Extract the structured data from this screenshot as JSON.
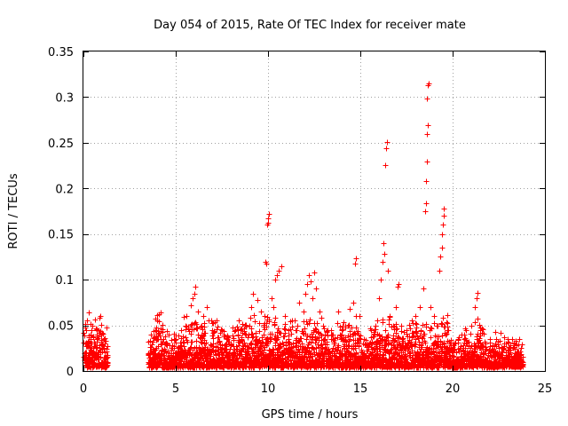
{
  "chart_data": {
    "type": "scatter",
    "title": "Day 054 of 2015, Rate Of TEC Index for receiver mate",
    "xlabel": "GPS time / hours",
    "ylabel": "ROTI / TECUs",
    "xlim": [
      0,
      25
    ],
    "ylim": [
      0,
      0.35
    ],
    "xticks": [
      0,
      5,
      10,
      15,
      20,
      25
    ],
    "xtick_labels": [
      "0",
      "5",
      "10",
      "15",
      "20",
      "25"
    ],
    "yticks": [
      0,
      0.05,
      0.1,
      0.15,
      0.2,
      0.25,
      0.3,
      0.35
    ],
    "ytick_labels": [
      "0",
      "0.05",
      "0.1",
      "0.15",
      "0.2",
      "0.25",
      "0.3",
      "0.35"
    ],
    "grid": true,
    "marker": "+",
    "series_color": "#ff0000",
    "data_gaps_hours": [
      [
        1.3,
        3.5
      ],
      [
        23.8,
        25
      ]
    ],
    "series": [
      {
        "name": "ROTI",
        "points": [
          [
            0.1,
            0.03
          ],
          [
            0.15,
            0.045
          ],
          [
            0.2,
            0.055
          ],
          [
            0.3,
            0.064
          ],
          [
            0.35,
            0.025
          ],
          [
            0.5,
            0.05
          ],
          [
            0.6,
            0.015
          ],
          [
            0.7,
            0.035
          ],
          [
            0.8,
            0.02
          ],
          [
            0.85,
            0.058
          ],
          [
            0.9,
            0.06
          ],
          [
            1.0,
            0.03
          ],
          [
            1.1,
            0.035
          ],
          [
            1.2,
            0.015
          ],
          [
            3.5,
            0.032
          ],
          [
            3.7,
            0.02
          ],
          [
            3.9,
            0.045
          ],
          [
            4.0,
            0.055
          ],
          [
            4.1,
            0.062
          ],
          [
            4.2,
            0.064
          ],
          [
            4.4,
            0.03
          ],
          [
            4.6,
            0.04
          ],
          [
            4.8,
            0.025
          ],
          [
            5.0,
            0.035
          ],
          [
            5.3,
            0.045
          ],
          [
            5.6,
            0.06
          ],
          [
            5.8,
            0.072
          ],
          [
            5.9,
            0.08
          ],
          [
            6.0,
            0.085
          ],
          [
            6.05,
            0.092
          ],
          [
            6.2,
            0.065
          ],
          [
            6.4,
            0.05
          ],
          [
            6.5,
            0.06
          ],
          [
            6.7,
            0.07
          ],
          [
            6.9,
            0.055
          ],
          [
            7.0,
            0.042
          ],
          [
            7.2,
            0.055
          ],
          [
            7.5,
            0.045
          ],
          [
            7.8,
            0.035
          ],
          [
            8.0,
            0.03
          ],
          [
            8.2,
            0.045
          ],
          [
            8.4,
            0.055
          ],
          [
            8.6,
            0.052
          ],
          [
            8.8,
            0.04
          ],
          [
            9.0,
            0.05
          ],
          [
            9.1,
            0.07
          ],
          [
            9.2,
            0.085
          ],
          [
            9.4,
            0.078
          ],
          [
            9.6,
            0.065
          ],
          [
            9.8,
            0.06
          ],
          [
            9.85,
            0.12
          ],
          [
            9.9,
            0.118
          ],
          [
            9.95,
            0.16
          ],
          [
            10.0,
            0.162
          ],
          [
            10.0,
            0.167
          ],
          [
            10.05,
            0.172
          ],
          [
            10.2,
            0.08
          ],
          [
            10.3,
            0.07
          ],
          [
            10.4,
            0.1
          ],
          [
            10.5,
            0.105
          ],
          [
            10.6,
            0.11
          ],
          [
            10.7,
            0.115
          ],
          [
            10.9,
            0.06
          ],
          [
            11.1,
            0.045
          ],
          [
            11.3,
            0.055
          ],
          [
            11.5,
            0.045
          ],
          [
            11.7,
            0.075
          ],
          [
            11.9,
            0.065
          ],
          [
            12.0,
            0.085
          ],
          [
            12.1,
            0.095
          ],
          [
            12.2,
            0.105
          ],
          [
            12.3,
            0.098
          ],
          [
            12.4,
            0.08
          ],
          [
            12.5,
            0.108
          ],
          [
            12.6,
            0.09
          ],
          [
            12.8,
            0.065
          ],
          [
            13.0,
            0.05
          ],
          [
            13.2,
            0.045
          ],
          [
            13.5,
            0.035
          ],
          [
            13.8,
            0.065
          ],
          [
            14.0,
            0.045
          ],
          [
            14.2,
            0.05
          ],
          [
            14.4,
            0.068
          ],
          [
            14.6,
            0.075
          ],
          [
            14.7,
            0.118
          ],
          [
            14.75,
            0.123
          ],
          [
            14.9,
            0.04
          ],
          [
            15.2,
            0.035
          ],
          [
            15.4,
            0.03
          ],
          [
            15.6,
            0.045
          ],
          [
            15.8,
            0.05
          ],
          [
            16.0,
            0.08
          ],
          [
            16.1,
            0.1
          ],
          [
            16.2,
            0.12
          ],
          [
            16.25,
            0.14
          ],
          [
            16.3,
            0.128
          ],
          [
            16.35,
            0.226
          ],
          [
            16.4,
            0.244
          ],
          [
            16.45,
            0.251
          ],
          [
            16.5,
            0.11
          ],
          [
            16.6,
            0.06
          ],
          [
            16.8,
            0.05
          ],
          [
            16.9,
            0.07
          ],
          [
            17.0,
            0.092
          ],
          [
            17.05,
            0.095
          ],
          [
            17.2,
            0.05
          ],
          [
            17.5,
            0.045
          ],
          [
            17.8,
            0.055
          ],
          [
            18.0,
            0.06
          ],
          [
            18.2,
            0.07
          ],
          [
            18.4,
            0.09
          ],
          [
            18.5,
            0.175
          ],
          [
            18.55,
            0.184
          ],
          [
            18.55,
            0.208
          ],
          [
            18.6,
            0.229
          ],
          [
            18.6,
            0.26
          ],
          [
            18.65,
            0.269
          ],
          [
            18.6,
            0.298
          ],
          [
            18.65,
            0.313
          ],
          [
            18.7,
            0.315
          ],
          [
            18.8,
            0.07
          ],
          [
            19.0,
            0.06
          ],
          [
            19.2,
            0.05
          ],
          [
            19.3,
            0.11
          ],
          [
            19.35,
            0.125
          ],
          [
            19.4,
            0.135
          ],
          [
            19.4,
            0.15
          ],
          [
            19.45,
            0.16
          ],
          [
            19.5,
            0.17
          ],
          [
            19.5,
            0.178
          ],
          [
            19.7,
            0.045
          ],
          [
            20.0,
            0.03
          ],
          [
            20.3,
            0.035
          ],
          [
            20.5,
            0.04
          ],
          [
            20.7,
            0.045
          ],
          [
            21.0,
            0.05
          ],
          [
            21.2,
            0.07
          ],
          [
            21.3,
            0.08
          ],
          [
            21.35,
            0.086
          ],
          [
            21.5,
            0.045
          ],
          [
            21.8,
            0.03
          ],
          [
            22.0,
            0.035
          ],
          [
            22.3,
            0.03
          ],
          [
            22.6,
            0.042
          ],
          [
            22.8,
            0.03
          ],
          [
            23.0,
            0.035
          ],
          [
            23.3,
            0.03
          ],
          [
            23.6,
            0.035
          ],
          [
            23.7,
            0.025
          ]
        ]
      }
    ]
  }
}
